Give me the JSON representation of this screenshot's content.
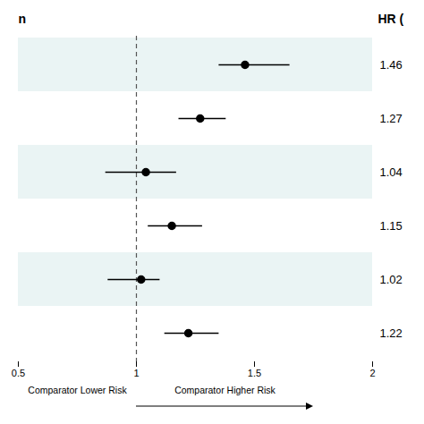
{
  "chart_data": {
    "type": "forest",
    "title": "n",
    "categories": [
      null,
      null,
      null,
      null,
      null,
      null
    ],
    "values": [
      1.46,
      1.27,
      1.04,
      1.15,
      1.02,
      1.22
    ],
    "ci_low": [
      1.35,
      1.18,
      0.87,
      1.05,
      0.88,
      1.12
    ],
    "ci_high": [
      1.65,
      1.38,
      1.17,
      1.28,
      1.1,
      1.35
    ],
    "data_labels": true,
    "reference_line": 1,
    "annotations": [
      "HR (",
      "Comparator Lower Risk",
      "Comparator Higher Risk"
    ],
    "xlim": [
      0.5,
      2
    ],
    "xticks": [
      0.5,
      1,
      1.5,
      2
    ],
    "color": "#000000",
    "row_colors": [
      "#eaf4f4",
      "#ffffff",
      "#eaf4f4",
      "#ffffff",
      "#eaf4f4",
      "#ffffff"
    ],
    "tick_labels": "x",
    "grid": false
  }
}
